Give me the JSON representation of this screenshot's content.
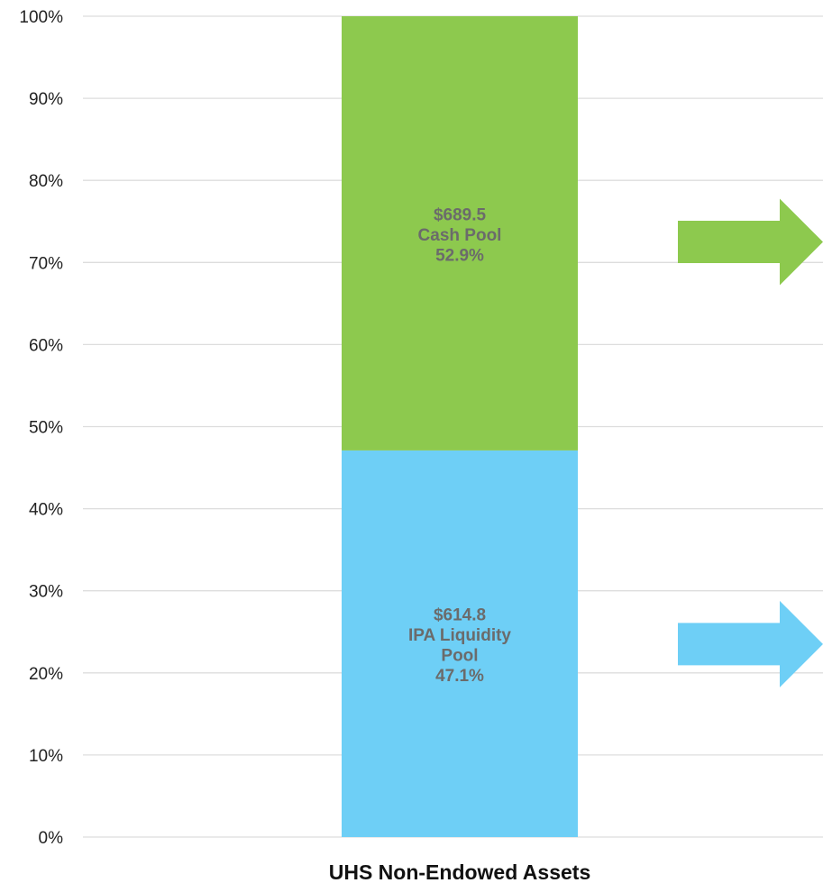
{
  "chart_data": {
    "type": "bar",
    "stacked": true,
    "categories": [
      "UHS Non-Endowed Assets"
    ],
    "series": [
      {
        "name": "IPA Liquidity Pool",
        "values": [
          47.1
        ],
        "color": "#6ecff6",
        "label_lines": [
          "$614.8",
          "IPA Liquidity",
          "Pool",
          "47.1%"
        ]
      },
      {
        "name": "Cash Pool",
        "values": [
          52.9
        ],
        "color": "#8dc94e",
        "label_lines": [
          "$689.5",
          "Cash Pool",
          "52.9%"
        ]
      }
    ],
    "y_ticks": [
      "0%",
      "10%",
      "20%",
      "30%",
      "40%",
      "50%",
      "60%",
      "70%",
      "80%",
      "90%",
      "100%"
    ],
    "ylim": [
      0,
      100
    ],
    "grid": true,
    "arrows": [
      {
        "color": "#8dc94e",
        "y": 72.5
      },
      {
        "color": "#6ecff6",
        "y": 23.5
      }
    ]
  }
}
